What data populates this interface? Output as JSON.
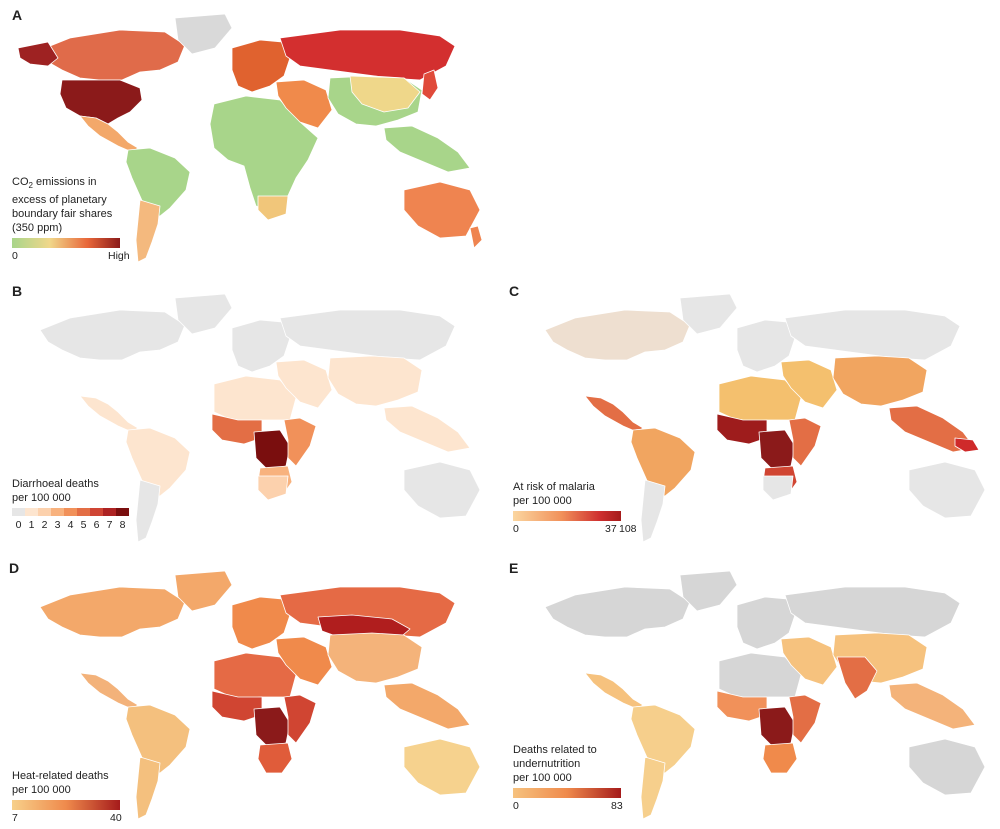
{
  "panels": {
    "A": {
      "letter": "A",
      "legend_title_lines": [
        "CO",
        "excess of planetary",
        "boundary fair shares",
        "(350 ppm)"
      ],
      "legend_title_first_line": {
        "pre": "CO",
        "sub": "2",
        "post": " emissions in"
      },
      "legend_min": "0",
      "legend_max": "High",
      "colors": {
        "low": "#a8d58a",
        "mid": "#f0d78a",
        "high": "#8b1a1a"
      }
    },
    "B": {
      "letter": "B",
      "legend_title_lines": [
        "Diarrhoeal deaths",
        "per 100 000"
      ],
      "legend_ticks": [
        "0",
        "1",
        "2",
        "3",
        "4",
        "5",
        "6",
        "7",
        "8"
      ],
      "swatch_colors": [
        "#e6e6e6",
        "#fde5cf",
        "#fcd1ad",
        "#f8b27e",
        "#f1915a",
        "#e36e45",
        "#cf4534",
        "#ad2323",
        "#7a0e0e"
      ]
    },
    "C": {
      "letter": "C",
      "legend_title_lines": [
        "At risk of malaria",
        "per 100 000"
      ],
      "legend_min": "0",
      "legend_mid": "37",
      "legend_max": "108",
      "colors": {
        "low": "#fbd6a0",
        "high": "#a51b1b"
      }
    },
    "D": {
      "letter": "D",
      "legend_title_lines": [
        "Heat-related deaths",
        "per 100 000"
      ],
      "legend_min": "7",
      "legend_max": "40",
      "colors": {
        "low": "#f7d08a",
        "high": "#a51b1b"
      }
    },
    "E": {
      "letter": "E",
      "legend_title_lines": [
        "Deaths related to",
        "undernutrition",
        "per 100 000"
      ],
      "legend_min": "0",
      "legend_max": "83",
      "colors": {
        "low": "#f6c27e",
        "high": "#a51b1b"
      }
    }
  },
  "region_colors": {
    "A": {
      "north_america": "#e06b4a",
      "usa": "#8b1a1a",
      "greenland": "#d9d9d9",
      "alaska": "#9e2222",
      "central_america": "#f3a86a",
      "south_america": "#a8d58a",
      "southern_cone": "#f4b97e",
      "europe": "#e0622f",
      "russia": "#d32f2f",
      "middle_east": "#f08a4b",
      "africa": "#a8d58a",
      "south_africa": "#f1c67a",
      "asia": "#a8d58a",
      "china": "#efd78a",
      "se_asia": "#a8d58a",
      "japan": "#e04a3a",
      "australia": "#ef8450",
      "nz": "#ef8450"
    },
    "B": {
      "north_america": "#e6e6e6",
      "greenland": "#e6e6e6",
      "central_america": "#fde5cf",
      "south_america": "#fde5cf",
      "southern_cone": "#e6e6e6",
      "europe": "#e6e6e6",
      "russia": "#e6e6e6",
      "north_africa": "#fde5cf",
      "west_africa": "#e36e45",
      "central_africa": "#7a0e0e",
      "east_africa": "#f1915a",
      "southern_africa": "#f8b27e",
      "south_africa": "#fcd1ad",
      "middle_east": "#fde5cf",
      "asia": "#fde5cf",
      "se_asia": "#fde5cf",
      "australia": "#e6e6e6"
    },
    "C": {
      "north_america": "#eedfd0",
      "greenland": "#e6e6e6",
      "central_america": "#e36e45",
      "south_america": "#f1a560",
      "southern_cone": "#e6e6e6",
      "europe": "#e6e6e6",
      "russia": "#e6e6e6",
      "north_africa": "#f4c06e",
      "west_africa": "#9e1c1c",
      "central_africa": "#8b1a1a",
      "east_africa": "#e36e45",
      "southern_africa": "#d04532",
      "south_africa": "#e6e6e6",
      "middle_east": "#f4c06e",
      "asia": "#f1a560",
      "se_asia": "#e36e45",
      "png": "#cf2a2a",
      "australia": "#e6e6e6"
    },
    "D": {
      "north_america": "#f3a86a",
      "greenland": "#f3a86a",
      "central_america": "#f3b27a",
      "south_america": "#f4c07e",
      "southern_cone": "#f4c07e",
      "europe": "#f08a4b",
      "russia": "#e56a45",
      "central_asia": "#b01e1e",
      "north_africa": "#e56a45",
      "west_africa": "#d04532",
      "central_africa": "#8b1a1a",
      "east_africa": "#d04532",
      "southern_africa": "#e05c3a",
      "middle_east": "#f08a4b",
      "asia": "#f4b37a",
      "se_asia": "#f3a86a",
      "australia": "#f6d28e"
    },
    "E": {
      "north_america": "#d6d6d6",
      "greenland": "#d6d6d6",
      "central_america": "#f6c27e",
      "south_america": "#f6cf8c",
      "southern_cone": "#f6cf8c",
      "europe": "#d6d6d6",
      "russia": "#d6d6d6",
      "north_africa": "#d6d6d6",
      "west_africa": "#f1915a",
      "central_africa": "#8b1a1a",
      "east_africa": "#e36e45",
      "southern_africa": "#f08a4b",
      "middle_east": "#f6c27e",
      "south_asia": "#e36e45",
      "asia": "#f6c27e",
      "se_asia": "#f4b37a",
      "australia": "#d6d6d6"
    }
  }
}
